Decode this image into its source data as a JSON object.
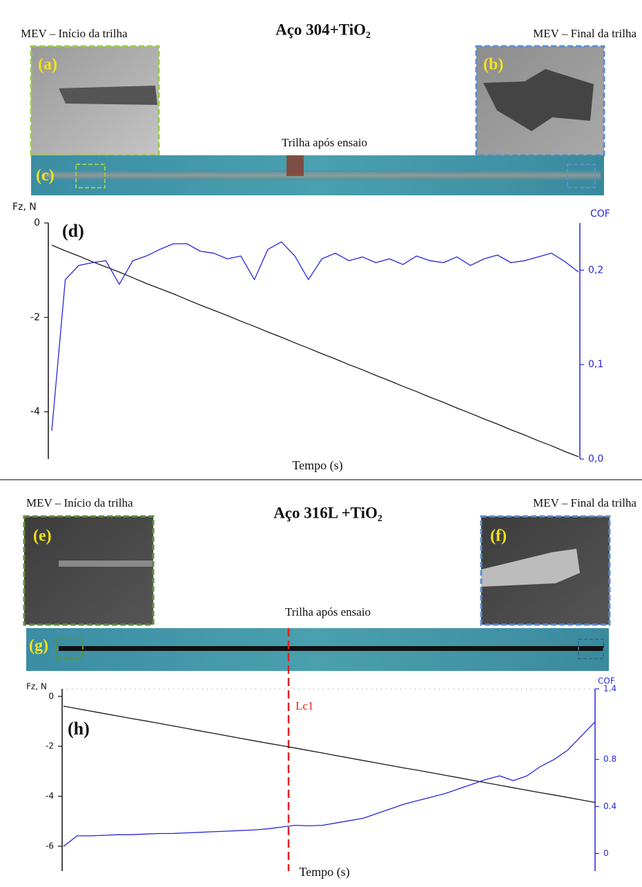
{
  "panels": [
    {
      "title": "Aço 304+TiO₂",
      "left_caption": "MEV – Início da trilha",
      "right_caption": "MEV – Final da trilha",
      "image_labels": [
        "(a)",
        "(b)",
        "(c)"
      ],
      "strip_caption": "Trilha após ensaio"
    },
    {
      "title": "Aço 316L +TiO₂",
      "left_caption": "MEV – Início da trilha",
      "right_caption": "MEV – Final da trilha",
      "image_labels": [
        "(e)",
        "(f)",
        "(g)"
      ],
      "strip_caption": "Trilha após ensaio"
    }
  ],
  "chart_data": [
    {
      "type": "line",
      "panel_label": "(d)",
      "ylabel": "Fz, N",
      "y2label": "COF",
      "xlabel": "Tempo (s)",
      "ylim": [
        -5,
        0
      ],
      "yticks": [
        0,
        -2,
        -4
      ],
      "y2lim": [
        0,
        0.25
      ],
      "y2ticks": [
        {
          "value": 0,
          "label": "0,0"
        },
        {
          "value": 0.1,
          "label": "0,1"
        },
        {
          "value": 0.2,
          "label": "0,2"
        }
      ],
      "series": [
        {
          "color": "#1a1a1a",
          "values": [
            -0.47,
            -0.59,
            -0.7,
            -0.82,
            -0.93,
            -1.04,
            -1.16,
            -1.28,
            -1.39,
            -1.5,
            -1.62,
            -1.74,
            -1.85,
            -1.96,
            -2.08,
            -2.19,
            -2.31,
            -2.42,
            -2.54,
            -2.65,
            -2.77,
            -2.88,
            -3.0,
            -3.11,
            -3.23,
            -3.34,
            -3.46,
            -3.57,
            -3.69,
            -3.8,
            -3.92,
            -4.03,
            -4.15,
            -4.26,
            -4.38,
            -4.49,
            -4.61,
            -4.72,
            -4.84,
            -4.95
          ]
        },
        {
          "color": "#2626d9",
          "axis": "y2",
          "values": [
            0.03,
            0.19,
            0.205,
            0.208,
            0.21,
            0.185,
            0.21,
            0.215,
            0.222,
            0.228,
            0.228,
            0.22,
            0.218,
            0.212,
            0.215,
            0.19,
            0.222,
            0.23,
            0.215,
            0.19,
            0.212,
            0.218,
            0.21,
            0.214,
            0.208,
            0.212,
            0.206,
            0.215,
            0.21,
            0.208,
            0.214,
            0.205,
            0.212,
            0.216,
            0.208,
            0.21,
            0.214,
            0.218,
            0.209,
            0.198
          ]
        }
      ]
    },
    {
      "type": "line",
      "panel_label": "(h)",
      "ylabel": "Fz, N",
      "y2label": "COF",
      "xlabel": "Tempo (s)",
      "annotation": "Lc1",
      "ylim": [
        -7,
        0.3
      ],
      "yticks": [
        0,
        -2,
        -4,
        -6
      ],
      "y2lim": [
        -0.15,
        1.4
      ],
      "y2ticks": [
        0,
        0.4,
        0.8,
        1.4
      ],
      "series": [
        {
          "color": "#1a1a1a",
          "values": [
            -0.39,
            -0.49,
            -0.59,
            -0.69,
            -0.79,
            -0.89,
            -0.98,
            -1.08,
            -1.18,
            -1.28,
            -1.38,
            -1.48,
            -1.58,
            -1.68,
            -1.78,
            -1.88,
            -1.97,
            -2.07,
            -2.17,
            -2.27,
            -2.37,
            -2.47,
            -2.57,
            -2.67,
            -2.77,
            -2.87,
            -2.96,
            -3.06,
            -3.16,
            -3.26,
            -3.36,
            -3.46,
            -3.56,
            -3.66,
            -3.76,
            -3.86,
            -3.95,
            -4.05,
            -4.15,
            -4.25
          ]
        },
        {
          "color": "#2626d9",
          "axis": "y2",
          "values": [
            0.06,
            0.15,
            0.15,
            0.155,
            0.16,
            0.16,
            0.165,
            0.17,
            0.17,
            0.175,
            0.18,
            0.185,
            0.19,
            0.195,
            0.2,
            0.21,
            0.225,
            0.24,
            0.235,
            0.24,
            0.26,
            0.28,
            0.3,
            0.34,
            0.38,
            0.42,
            0.45,
            0.48,
            0.51,
            0.55,
            0.59,
            0.63,
            0.66,
            0.62,
            0.66,
            0.74,
            0.8,
            0.88,
            1.0,
            1.12
          ]
        }
      ]
    }
  ]
}
